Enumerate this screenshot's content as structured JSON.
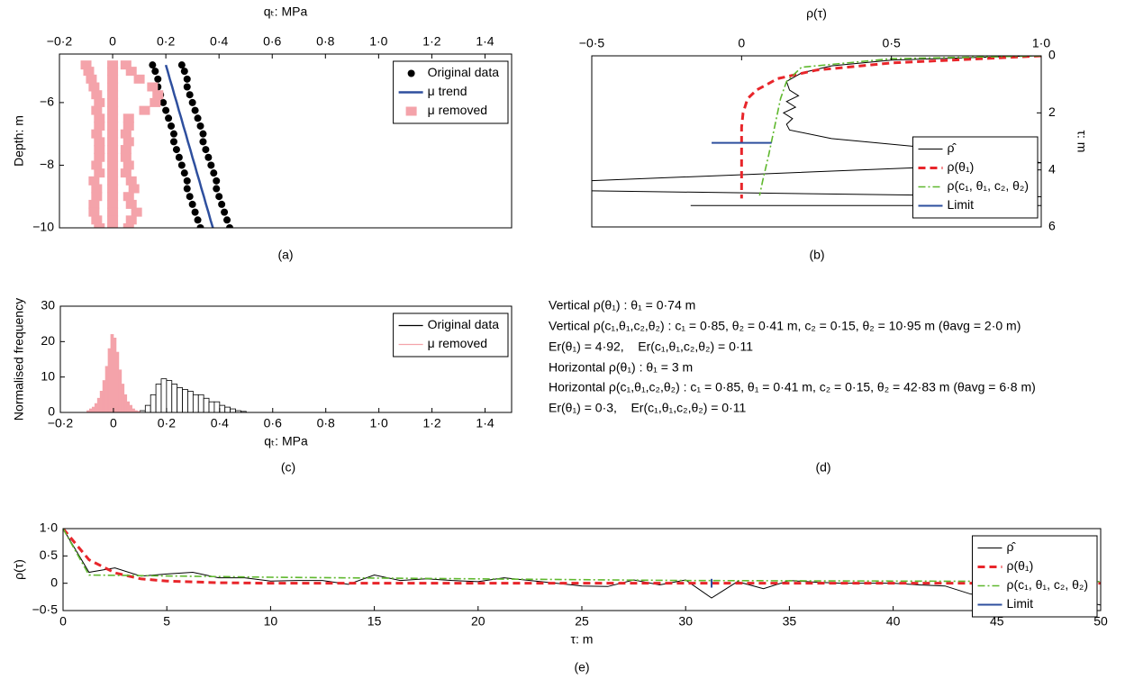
{
  "chart_data": [
    {
      "type": "scatter",
      "panel": "(a)",
      "xlabel": "qₜ: MPa",
      "ylabel": "Depth: m",
      "xaxis": "top",
      "yaxis": "left",
      "legend": "upper right",
      "xlim": [
        -0.2,
        1.5
      ],
      "xticks": [
        {
          "value": -0.2,
          "label": "−0·2"
        },
        0,
        {
          "value": 0.2,
          "label": "0·2"
        },
        {
          "value": 0.4,
          "label": "0·4"
        },
        {
          "value": 0.6,
          "label": "0·6"
        },
        {
          "value": 0.8,
          "label": "0·8"
        },
        {
          "value": 1.0,
          "label": "1·0"
        },
        {
          "value": 1.2,
          "label": "1·2"
        },
        {
          "value": 1.4,
          "label": "1·4"
        }
      ],
      "ylim": [
        -10,
        -4.45
      ],
      "yticks": [
        {
          "value": -10,
          "label": "−10"
        },
        {
          "value": -8,
          "label": "−8"
        },
        {
          "value": -6,
          "label": "−6"
        }
      ],
      "series": [
        {
          "name": "Original data",
          "type": "scatter",
          "marker": "circle",
          "color": "#000000",
          "x": [
            0.15,
            0.16,
            0.17,
            0.17,
            0.18,
            0.19,
            0.2,
            0.21,
            0.22,
            0.23,
            0.23,
            0.24,
            0.25,
            0.26,
            0.27,
            0.28,
            0.28,
            0.29,
            0.3,
            0.31,
            0.32,
            0.33,
            0.26,
            0.27,
            0.28,
            0.28,
            0.29,
            0.3,
            0.31,
            0.32,
            0.33,
            0.34,
            0.34,
            0.35,
            0.36,
            0.37,
            0.38,
            0.39,
            0.39,
            0.4,
            0.41,
            0.42,
            0.43,
            0.44
          ],
          "values": [
            -4.8,
            -5.0,
            -5.25,
            -5.5,
            -5.75,
            -6.0,
            -6.25,
            -6.5,
            -6.75,
            -7.0,
            -7.25,
            -7.5,
            -7.75,
            -8.0,
            -8.25,
            -8.5,
            -8.75,
            -9.0,
            -9.25,
            -9.5,
            -9.75,
            -10.0,
            -4.8,
            -5.0,
            -5.25,
            -5.5,
            -5.75,
            -6.0,
            -6.25,
            -6.5,
            -6.75,
            -7.0,
            -7.25,
            -7.5,
            -7.75,
            -8.0,
            -8.25,
            -8.5,
            -8.75,
            -9.0,
            -9.25,
            -9.5,
            -9.75,
            -10.0
          ]
        },
        {
          "name": "μ trend",
          "type": "line",
          "style": "solid",
          "width": 2.5,
          "color": "#2e4f9e",
          "x": [
            0.2,
            0.207,
            0.215,
            0.224,
            0.232,
            0.241,
            0.249,
            0.258,
            0.266,
            0.275,
            0.283,
            0.292,
            0.3,
            0.309,
            0.317,
            0.326,
            0.334,
            0.343,
            0.351,
            0.36,
            0.368,
            0.377
          ],
          "values": [
            -4.8,
            -5.0,
            -5.25,
            -5.5,
            -5.75,
            -6.0,
            -6.25,
            -6.5,
            -6.75,
            -7.0,
            -7.25,
            -7.5,
            -7.75,
            -8.0,
            -8.25,
            -8.5,
            -8.75,
            -9.0,
            -9.25,
            -9.5,
            -9.75,
            -10.0
          ]
        },
        {
          "name": "μ removed",
          "type": "scatter",
          "marker": "square",
          "color": "#f4a3aa",
          "x": [
            -0.1,
            -0.09,
            -0.08,
            -0.07,
            -0.06,
            -0.05,
            -0.06,
            -0.05,
            -0.05,
            -0.06,
            -0.05,
            -0.05,
            -0.05,
            -0.06,
            -0.05,
            -0.07,
            -0.06,
            -0.06,
            -0.07,
            -0.07,
            -0.06,
            -0.05,
            0,
            0,
            0,
            0,
            0,
            0,
            0,
            0,
            0,
            0,
            0,
            0,
            0,
            0,
            0,
            0,
            0,
            0,
            0,
            0,
            0,
            0,
            0.05,
            0.07,
            0.1,
            0.15,
            0.17,
            0.16,
            0.12,
            0.06,
            0.06,
            0.05,
            0.06,
            0.05,
            0.05,
            0.06,
            0.05,
            0.07,
            0.08,
            0.06,
            0.07,
            0.09,
            0.07,
            0.06
          ],
          "values": [
            -4.8,
            -5.0,
            -5.25,
            -5.5,
            -5.75,
            -6.0,
            -6.25,
            -6.5,
            -6.75,
            -7.0,
            -7.25,
            -7.5,
            -7.75,
            -8.0,
            -8.25,
            -8.5,
            -8.75,
            -9.0,
            -9.25,
            -9.5,
            -9.75,
            -10.0,
            -4.8,
            -5.0,
            -5.25,
            -5.5,
            -5.75,
            -6.0,
            -6.25,
            -6.5,
            -6.75,
            -7.0,
            -7.25,
            -7.5,
            -7.75,
            -8.0,
            -8.25,
            -8.5,
            -8.75,
            -9.0,
            -9.25,
            -9.5,
            -9.75,
            -10.0,
            -4.8,
            -5.0,
            -5.25,
            -5.5,
            -5.75,
            -6.0,
            -6.25,
            -6.5,
            -6.75,
            -7.0,
            -7.25,
            -7.5,
            -7.75,
            -8.0,
            -8.25,
            -8.5,
            -8.75,
            -9.0,
            -9.25,
            -9.5,
            -9.75,
            -10.0
          ]
        }
      ]
    },
    {
      "type": "line",
      "panel": "(b)",
      "xlabel": "ρ(τ)",
      "ylabel": "τ: m",
      "xaxis": "top",
      "yaxis": "right",
      "yinvert": true,
      "legend": "lower right",
      "xlim": [
        -0.5,
        1.0
      ],
      "xticks": [
        {
          "value": -0.5,
          "label": "−0·5"
        },
        0,
        {
          "value": 0.5,
          "label": "0·5"
        },
        {
          "value": 1.0,
          "label": "1·0"
        }
      ],
      "ylim": [
        0,
        6
      ],
      "yticks": [
        0,
        2,
        4,
        6
      ],
      "series": [
        {
          "name": "ρ̂",
          "style": "solid",
          "width": 1,
          "color": "#000000",
          "x": [
            1,
            0.8,
            0.5,
            0.3,
            0.2,
            0.15,
            0.16,
            0.19,
            0.15,
            0.18,
            0.14,
            0.17,
            0.15,
            0.16,
            0.3,
            0.6,
            0.85,
            1.0,
            -0.6,
            -0.6,
            1.05,
            1.05,
            -0.17
          ],
          "values": [
            0,
            0.05,
            0.15,
            0.35,
            0.6,
            0.9,
            1.2,
            1.4,
            1.6,
            1.8,
            2.0,
            2.2,
            2.4,
            2.6,
            2.9,
            3.2,
            3.5,
            3.75,
            4.42,
            4.72,
            4.95,
            5.25,
            5.25
          ]
        },
        {
          "name": "ρ(θ₁)",
          "style": "dashed",
          "width": 3,
          "color": "#e8262b",
          "x": [
            1,
            0.5,
            0.25,
            0.12,
            0.05,
            0.02,
            0.005,
            0,
            0
          ],
          "values": [
            0,
            0.25,
            0.5,
            0.8,
            1.2,
            1.5,
            2,
            2.5,
            5.0
          ]
        },
        {
          "name": "ρ(c₁, θ₁, c₂, θ₂)",
          "style": "dashdot",
          "width": 1.6,
          "color": "#5fb82e",
          "x": [
            1,
            0.5,
            0.2,
            0.15,
            0.13,
            0.11,
            0.09,
            0.07,
            0.06
          ],
          "values": [
            0,
            0.1,
            0.4,
            0.9,
            1.5,
            2.5,
            3.5,
            4.4,
            4.9
          ]
        },
        {
          "name": "Limit",
          "style": "solid",
          "width": 2,
          "color": "#2e4f9e",
          "x": [
            -0.1,
            0.1
          ],
          "values": [
            3.05,
            3.05
          ]
        }
      ]
    },
    {
      "type": "histogram",
      "panel": "(c)",
      "xlabel": "qₜ: MPa",
      "ylabel": "Normalised frequency",
      "xaxis": "bottom",
      "yaxis": "left",
      "legend": "upper right",
      "xlim": [
        -0.2,
        1.5
      ],
      "xticks": [
        {
          "value": -0.2,
          "label": "−0·2"
        },
        0,
        {
          "value": 0.2,
          "label": "0·2"
        },
        {
          "value": 0.4,
          "label": "0·4"
        },
        {
          "value": 0.6,
          "label": "0·6"
        },
        {
          "value": 0.8,
          "label": "0·8"
        },
        {
          "value": 1.0,
          "label": "1·0"
        },
        {
          "value": 1.2,
          "label": "1·2"
        },
        {
          "value": 1.4,
          "label": "1·4"
        }
      ],
      "ylim": [
        0,
        30
      ],
      "yticks": [
        0,
        10,
        20,
        30
      ],
      "series": [
        {
          "name": "Original data",
          "style": "outline",
          "color": "#000000",
          "bins": [
            0.1,
            0.12,
            0.14,
            0.16,
            0.18,
            0.2,
            0.22,
            0.24,
            0.26,
            0.28,
            0.3,
            0.32,
            0.34,
            0.36,
            0.38,
            0.4,
            0.42,
            0.44,
            0.46,
            0.48,
            0.5
          ],
          "values": [
            0.5,
            2,
            5,
            8,
            9.5,
            9,
            8,
            7,
            6.5,
            6,
            5,
            5,
            4,
            3,
            3,
            2,
            1.5,
            1,
            0.5,
            0.3
          ]
        },
        {
          "name": "μ removed",
          "style": "filled",
          "color": "#f4a3aa",
          "bins": [
            -0.1,
            -0.09,
            -0.08,
            -0.07,
            -0.06,
            -0.05,
            -0.04,
            -0.03,
            -0.02,
            -0.01,
            0,
            0.01,
            0.02,
            0.03,
            0.04,
            0.05,
            0.06,
            0.07,
            0.08,
            0.09,
            0.1
          ],
          "values": [
            0.5,
            1,
            1.5,
            2.5,
            4,
            6,
            9,
            13,
            18,
            22,
            21,
            17,
            12,
            8,
            5,
            3,
            2,
            1,
            0.5,
            0.3
          ]
        }
      ]
    },
    {
      "type": "line",
      "panel": "(e)",
      "xlabel": "τ: m",
      "ylabel": "ρ(τ)",
      "xaxis": "bottom",
      "yaxis": "left",
      "legend": "upper right",
      "xlim": [
        0,
        50
      ],
      "xticks": [
        0,
        5,
        10,
        15,
        20,
        25,
        30,
        35,
        40,
        45,
        50
      ],
      "ylim": [
        -0.5,
        1.0
      ],
      "yticks": [
        {
          "value": -0.5,
          "label": "−0·5"
        },
        0,
        {
          "value": 0.5,
          "label": "0·5"
        },
        {
          "value": 1.0,
          "label": "1·0"
        }
      ],
      "series": [
        {
          "name": "ρ̂",
          "style": "solid",
          "width": 1,
          "color": "#000000",
          "x": [
            0,
            1.25,
            2.5,
            3.75,
            5,
            6.25,
            7.5,
            8.75,
            10,
            11.25,
            12.5,
            13.75,
            15,
            16.25,
            17.5,
            18.75,
            20,
            21.25,
            22.5,
            23.75,
            25,
            26.25,
            27.5,
            28.75,
            30,
            31.25,
            32.5,
            33.75,
            35,
            36.25,
            37.5,
            38.75,
            40,
            41.25,
            42.5,
            43.75,
            45,
            46.25,
            47.5,
            48.75,
            50
          ],
          "values": [
            1,
            0.2,
            0.28,
            0.13,
            0.17,
            0.2,
            0.1,
            0.1,
            0.04,
            0.05,
            0.05,
            -0.02,
            0.15,
            0.05,
            0.08,
            0.05,
            0.03,
            0.1,
            0.05,
            0,
            -0.05,
            -0.06,
            0.06,
            -0.03,
            0.06,
            -0.27,
            0.03,
            -0.1,
            0.05,
            0.02,
            0,
            0,
            0,
            -0.03,
            -0.05,
            -0.2,
            -0.17,
            -0.2,
            -0.2,
            -0.3,
            -0.4
          ]
        },
        {
          "name": "ρ(θ₁)",
          "style": "dashed",
          "width": 3,
          "color": "#e8262b",
          "x": [
            0,
            1.25,
            2.5,
            3.75,
            5,
            7.5,
            10,
            50
          ],
          "values": [
            1,
            0.43,
            0.19,
            0.08,
            0.04,
            0.01,
            0,
            0
          ]
        },
        {
          "name": "ρ(c₁, θ₁, c₂, θ₂)",
          "style": "dashdot",
          "width": 1.6,
          "color": "#5fb82e",
          "x": [
            0,
            1.25,
            2.5,
            10,
            20,
            30,
            40,
            50
          ],
          "values": [
            1,
            0.15,
            0.145,
            0.11,
            0.08,
            0.05,
            0.04,
            0.03
          ]
        },
        {
          "name": "Limit",
          "style": "solid",
          "width": 2,
          "color": "#2e4f9e",
          "x": [
            31.25,
            31.25
          ],
          "values": [
            -0.08,
            0.08
          ]
        }
      ]
    }
  ],
  "text_panel": {
    "label": "(d)",
    "lines": [
      "Vertical ρ(θ₁) : θ₁ = 0·74 m",
      "Vertical ρ(c₁,θ₁,c₂,θ₂) : c₁ = 0·85, θ₂ = 0·41 m, c₂ = 0·15, θ₂ = 10·95 m (θavg = 2·0 m)",
      "Er(θ₁) = 4·92,    Er(c₁,θ₁,c₂,θ₂) = 0·11",
      "Horizontal ρ(θ₁) : θ₁ = 3 m",
      "Horizontal ρ(c₁,θ₁,c₂,θ₂) : c₁ = 0·85, θ₁ = 0·41 m, c₂ = 0·15, θ₂ = 42·83 m (θavg = 6·8 m)",
      "Er(θ₁) = 0·3,    Er(c₁,θ₁,c₂,θ₂) = 0·11"
    ]
  }
}
